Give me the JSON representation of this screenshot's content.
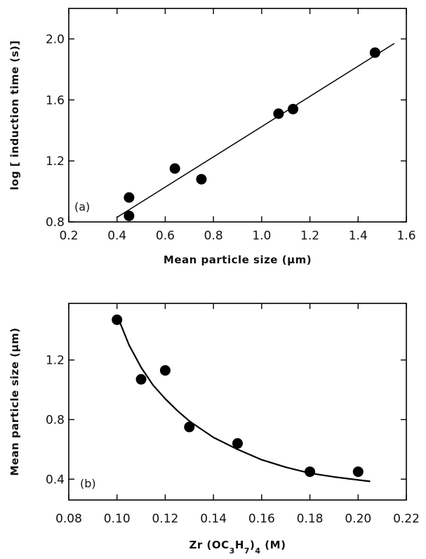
{
  "chart_data": [
    {
      "type": "scatter",
      "panel_label": "(a)",
      "xlabel": "Mean particle size  (μm)",
      "ylabel": "log [ induction time (s)]",
      "xlim": [
        0.2,
        1.6
      ],
      "ylim": [
        0.8,
        2.2
      ],
      "x_ticks": [
        "0.2",
        "0.4",
        "0.6",
        "0.8",
        "1.0",
        "1.2",
        "1.4",
        "1.6"
      ],
      "y_ticks": [
        "0.8",
        "1.2",
        "1.6",
        "2.0"
      ],
      "points": [
        {
          "x": 0.45,
          "y": 0.84
        },
        {
          "x": 0.45,
          "y": 0.96
        },
        {
          "x": 0.64,
          "y": 1.15
        },
        {
          "x": 0.75,
          "y": 1.08
        },
        {
          "x": 1.07,
          "y": 1.51
        },
        {
          "x": 1.13,
          "y": 1.54
        },
        {
          "x": 1.47,
          "y": 1.91
        }
      ],
      "fit": {
        "type": "linear",
        "x": [
          0.4,
          1.55
        ],
        "y": [
          0.83,
          1.97
        ]
      },
      "grid": false,
      "color": "#000000"
    },
    {
      "type": "scatter",
      "panel_label": "(b)",
      "xlabel": "Zr (OC3H7)4 (M)",
      "ylabel": "Mean particle size (μm)",
      "xlim": [
        0.08,
        0.22
      ],
      "ylim": [
        0.26,
        1.58
      ],
      "x_ticks": [
        "0.08",
        "0.10",
        "0.12",
        "0.14",
        "0.16",
        "0.18",
        "0.20",
        "0.22"
      ],
      "y_ticks": [
        "0.4",
        "0.8",
        "1.2"
      ],
      "points": [
        {
          "x": 0.1,
          "y": 1.47
        },
        {
          "x": 0.11,
          "y": 1.07
        },
        {
          "x": 0.12,
          "y": 1.13
        },
        {
          "x": 0.13,
          "y": 0.75
        },
        {
          "x": 0.15,
          "y": 0.64
        },
        {
          "x": 0.18,
          "y": 0.45
        },
        {
          "x": 0.2,
          "y": 0.45
        }
      ],
      "fit": {
        "type": "curve",
        "x": [
          0.101,
          0.105,
          0.11,
          0.115,
          0.12,
          0.125,
          0.13,
          0.14,
          0.15,
          0.16,
          0.17,
          0.18,
          0.19,
          0.205
        ],
        "y": [
          1.46,
          1.3,
          1.15,
          1.03,
          0.94,
          0.86,
          0.79,
          0.68,
          0.6,
          0.53,
          0.48,
          0.44,
          0.415,
          0.385
        ]
      },
      "grid": false,
      "color": "#000000"
    }
  ]
}
